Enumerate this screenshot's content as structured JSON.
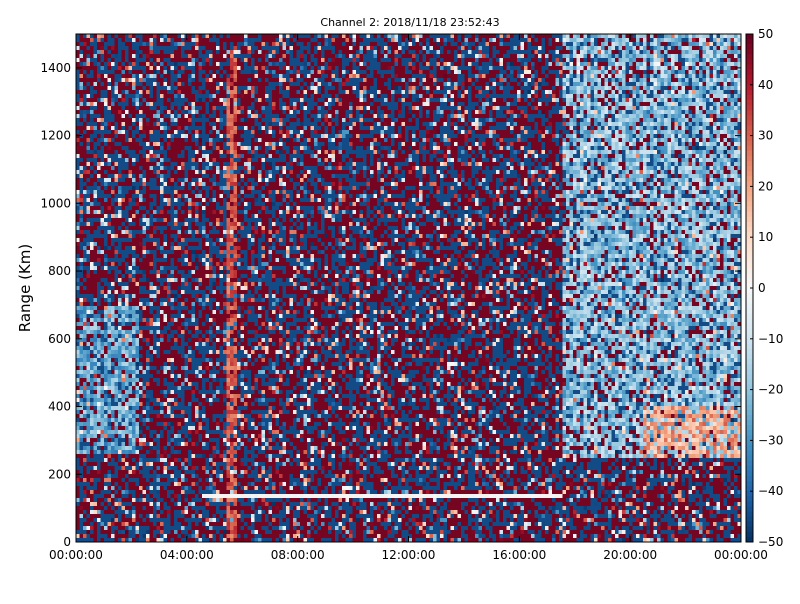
{
  "chart_data": {
    "type": "heatmap",
    "title": "Channel 2: 2018/11/18 23:52:43",
    "xlabel": "",
    "ylabel": "Range (Km)",
    "x_ticks": [
      "00:00:00",
      "04:00:00",
      "08:00:00",
      "12:00:00",
      "16:00:00",
      "20:00:00",
      "00:00:00"
    ],
    "x_range_hours": [
      0,
      24
    ],
    "ylim": [
      0,
      1500
    ],
    "y_ticks": [
      "0",
      "200",
      "400",
      "600",
      "800",
      "1000",
      "1200",
      "1400"
    ],
    "y_tick_values": [
      0,
      200,
      400,
      600,
      800,
      1000,
      1200,
      1400
    ],
    "colorbar": {
      "range": [
        -50,
        50
      ],
      "ticks": [
        "50",
        "40",
        "30",
        "20",
        "10",
        "0",
        "−10",
        "−20",
        "−30",
        "−40",
        "−50"
      ],
      "tick_values": [
        50,
        40,
        30,
        20,
        10,
        0,
        -10,
        -20,
        -30,
        -40,
        -50
      ],
      "colormap": "RdBu_r",
      "colors": [
        "#053061",
        "#2166ac",
        "#4393c3",
        "#92c5de",
        "#d1e5f0",
        "#f7f7f7",
        "#fddbc7",
        "#f4a582",
        "#d6604d",
        "#b2182b",
        "#67001f"
      ]
    },
    "features": [
      {
        "kind": "vertical-stripe",
        "hour": 5.6,
        "range": [
          0,
          1450
        ],
        "value": 30
      },
      {
        "kind": "horizontal-band",
        "hours": [
          4.5,
          17.5
        ],
        "range_km": [
          130,
          140
        ],
        "value": 0
      },
      {
        "kind": "coherent-region",
        "hours": [
          0,
          2.3
        ],
        "range_km": [
          260,
          700
        ],
        "value": -25
      },
      {
        "kind": "coherent-region",
        "hours": [
          17.5,
          24
        ],
        "range_km": [
          250,
          1500
        ],
        "value": -20
      },
      {
        "kind": "coherent-region",
        "hours": [
          20.5,
          24
        ],
        "range_km": [
          250,
          400
        ],
        "value": 20
      }
    ],
    "grid": false,
    "legend": "colorbar-right"
  }
}
